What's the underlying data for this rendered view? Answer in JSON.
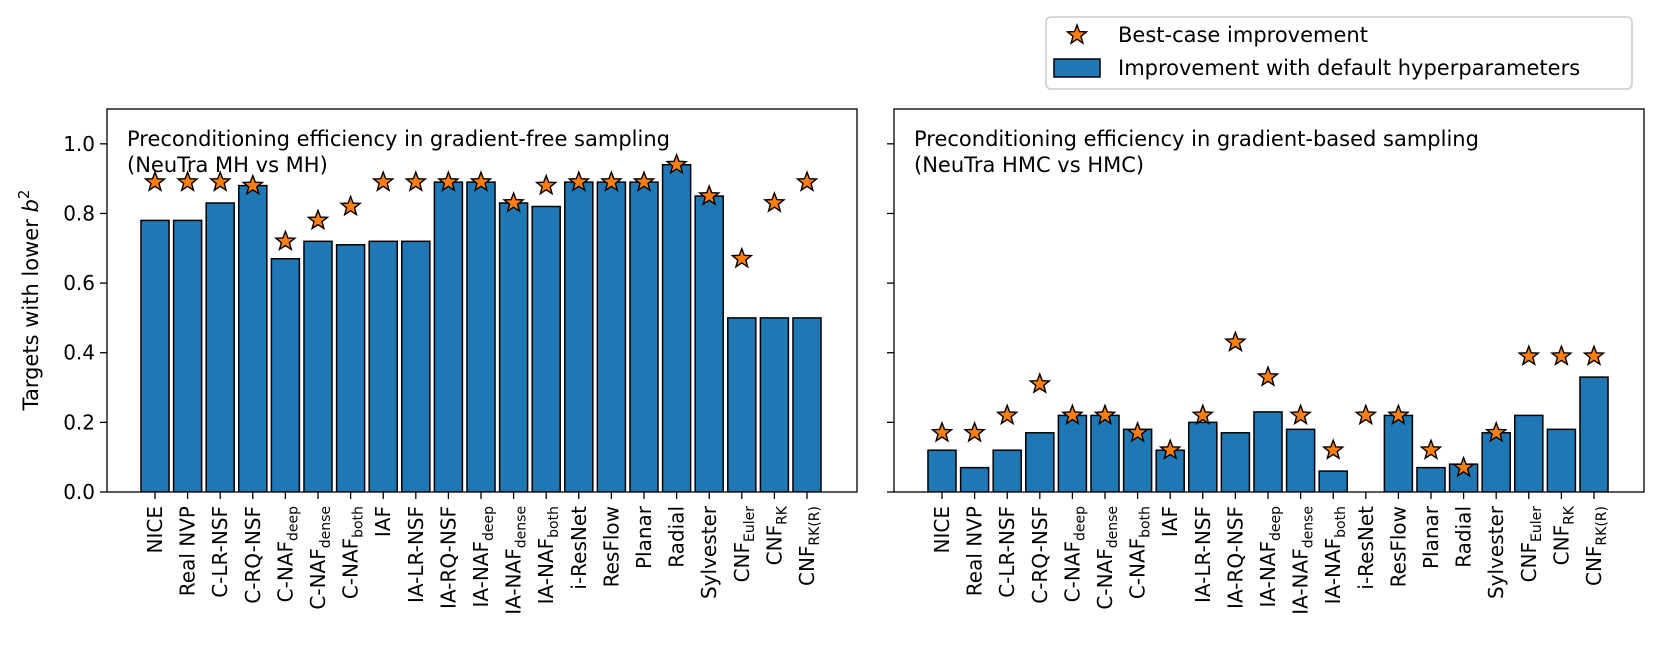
{
  "legend": {
    "best_label": "Best-case improvement",
    "default_label": "Improvement with default hyperparameters"
  },
  "colors": {
    "bar": "#1f77b4",
    "star": "#ff7f0e",
    "edge": "#000000"
  },
  "chart_data": [
    {
      "type": "bar",
      "title_line1": "Preconditioning efficiency in gradient-free sampling",
      "title_line2": "(NeuTra MH vs MH)",
      "ylabel_text": "Targets with lower ",
      "ylabel_var": "b",
      "ylabel_exp": "2",
      "ylim": [
        0,
        1.1
      ],
      "yticks": [
        "0.0",
        "0.2",
        "0.4",
        "0.6",
        "0.8",
        "1.0"
      ],
      "categories": [
        {
          "base": "NICE",
          "sub": ""
        },
        {
          "base": "Real NVP",
          "sub": ""
        },
        {
          "base": "C-LR-NSF",
          "sub": ""
        },
        {
          "base": "C-RQ-NSF",
          "sub": ""
        },
        {
          "base": "C-NAF",
          "sub": "deep"
        },
        {
          "base": "C-NAF",
          "sub": "dense"
        },
        {
          "base": "C-NAF",
          "sub": "both"
        },
        {
          "base": "IAF",
          "sub": ""
        },
        {
          "base": "IA-LR-NSF",
          "sub": ""
        },
        {
          "base": "IA-RQ-NSF",
          "sub": ""
        },
        {
          "base": "IA-NAF",
          "sub": "deep"
        },
        {
          "base": "IA-NAF",
          "sub": "dense"
        },
        {
          "base": "IA-NAF",
          "sub": "both"
        },
        {
          "base": "i-ResNet",
          "sub": ""
        },
        {
          "base": "ResFlow",
          "sub": ""
        },
        {
          "base": "Planar",
          "sub": ""
        },
        {
          "base": "Radial",
          "sub": ""
        },
        {
          "base": "Sylvester",
          "sub": ""
        },
        {
          "base": "CNF",
          "sub": "Euler"
        },
        {
          "base": "CNF",
          "sub": "RK"
        },
        {
          "base": "CNF",
          "sub": "RK(R)"
        }
      ],
      "series": [
        {
          "name": "Improvement with default hyperparameters",
          "values": [
            0.78,
            0.78,
            0.83,
            0.88,
            0.67,
            0.72,
            0.71,
            0.72,
            0.72,
            0.89,
            0.89,
            0.83,
            0.82,
            0.89,
            0.89,
            0.89,
            0.94,
            0.85,
            0.5,
            0.5,
            0.5
          ]
        },
        {
          "name": "Best-case improvement",
          "values": [
            0.89,
            0.89,
            0.89,
            0.88,
            0.72,
            0.78,
            0.82,
            0.89,
            0.89,
            0.89,
            0.89,
            0.83,
            0.88,
            0.89,
            0.89,
            0.89,
            0.94,
            0.85,
            0.67,
            0.83,
            0.89
          ]
        }
      ]
    },
    {
      "type": "bar",
      "title_line1": "Preconditioning efficiency in gradient-based sampling",
      "title_line2": "(NeuTra HMC vs HMC)",
      "ylim": [
        0,
        1.1
      ],
      "categories": [
        {
          "base": "NICE",
          "sub": ""
        },
        {
          "base": "Real NVP",
          "sub": ""
        },
        {
          "base": "C-LR-NSF",
          "sub": ""
        },
        {
          "base": "C-RQ-NSF",
          "sub": ""
        },
        {
          "base": "C-NAF",
          "sub": "deep"
        },
        {
          "base": "C-NAF",
          "sub": "dense"
        },
        {
          "base": "C-NAF",
          "sub": "both"
        },
        {
          "base": "IAF",
          "sub": ""
        },
        {
          "base": "IA-LR-NSF",
          "sub": ""
        },
        {
          "base": "IA-RQ-NSF",
          "sub": ""
        },
        {
          "base": "IA-NAF",
          "sub": "deep"
        },
        {
          "base": "IA-NAF",
          "sub": "dense"
        },
        {
          "base": "IA-NAF",
          "sub": "both"
        },
        {
          "base": "i-ResNet",
          "sub": ""
        },
        {
          "base": "ResFlow",
          "sub": ""
        },
        {
          "base": "Planar",
          "sub": ""
        },
        {
          "base": "Radial",
          "sub": ""
        },
        {
          "base": "Sylvester",
          "sub": ""
        },
        {
          "base": "CNF",
          "sub": "Euler"
        },
        {
          "base": "CNF",
          "sub": "RK"
        },
        {
          "base": "CNF",
          "sub": "RK(R)"
        }
      ],
      "series": [
        {
          "name": "Improvement with default hyperparameters",
          "values": [
            0.12,
            0.07,
            0.12,
            0.17,
            0.22,
            0.22,
            0.18,
            0.12,
            0.2,
            0.17,
            0.23,
            0.18,
            0.06,
            0.0,
            0.22,
            0.07,
            0.08,
            0.17,
            0.22,
            0.18,
            0.33
          ]
        },
        {
          "name": "Best-case improvement",
          "values": [
            0.17,
            0.17,
            0.22,
            0.31,
            0.22,
            0.22,
            0.17,
            0.12,
            0.22,
            0.43,
            0.33,
            0.22,
            0.12,
            0.22,
            0.22,
            0.12,
            0.07,
            0.17,
            0.39,
            0.39,
            0.39
          ]
        }
      ]
    }
  ]
}
